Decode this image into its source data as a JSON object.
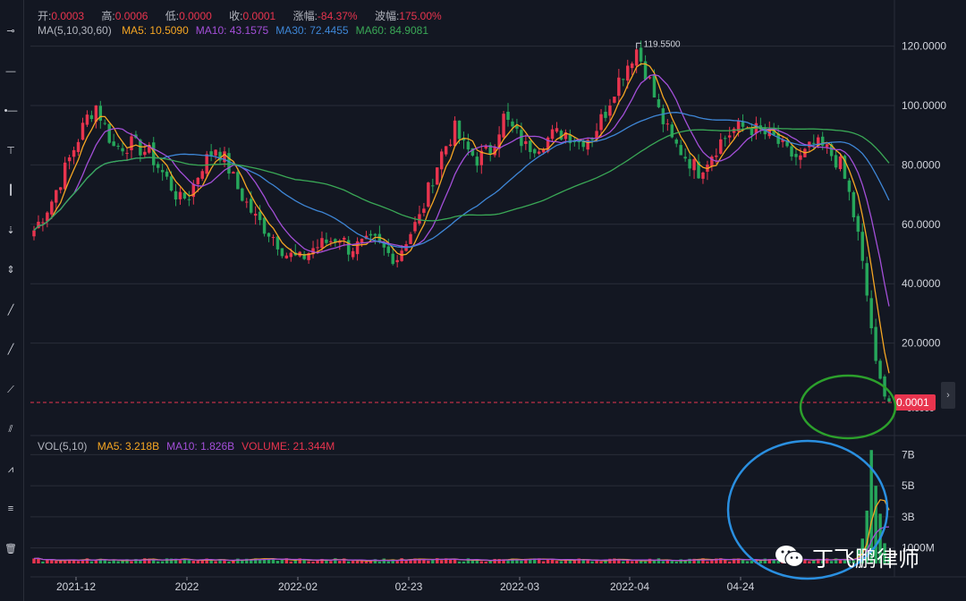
{
  "ohlc": {
    "open_label": "开:",
    "open": "0.0003",
    "high_label": "高:",
    "high": "0.0006",
    "low_label": "低:",
    "low": "0.0000",
    "close_label": "收:",
    "close": "0.0001",
    "change_label": "涨幅:",
    "change": "-84.37%",
    "range_label": "波幅:",
    "range": "175.00%"
  },
  "ma_legend": {
    "title": "MA(5,10,30,60)",
    "items": [
      {
        "label": "MA5:",
        "value": "10.5090",
        "color": "#f5a623"
      },
      {
        "label": "MA10:",
        "value": "43.1575",
        "color": "#a34fd8"
      },
      {
        "label": "MA30:",
        "value": "72.4455",
        "color": "#3e86d6"
      },
      {
        "label": "MA60:",
        "value": "84.9081",
        "color": "#3aa856"
      }
    ]
  },
  "vol_legend": {
    "title": "VOL(5,10)",
    "items": [
      {
        "label": "MA5:",
        "value": "3.218B",
        "color": "#f5a623"
      },
      {
        "label": "MA10:",
        "value": "1.826B",
        "color": "#a34fd8"
      },
      {
        "label": "VOLUME:",
        "value": "21.344M",
        "color": "#e8344e"
      }
    ]
  },
  "watermark": "丁飞鹏律师",
  "colors": {
    "up": "#e8344e",
    "down": "#26a65b",
    "background": "#131722",
    "grid": "#2a2e39"
  },
  "toolbar_icons": [
    "crosshair-icon",
    "horizontal-line-icon",
    "horizontal-ray-icon",
    "price-label-icon",
    "vertical-line-icon",
    "vertical-segment-icon",
    "vertical-range-icon",
    "trend-line-icon",
    "ray-icon",
    "extended-line-icon",
    "parallel-channel-icon",
    "pitchfork-icon",
    "fib-retracement-icon",
    "trash-icon"
  ],
  "chart_data": {
    "type": "candlestick",
    "price_axis": {
      "range": [
        0,
        125
      ],
      "ticks": [
        "120.0000",
        "100.0000",
        "80.0000",
        "60.0000",
        "40.0000",
        "20.0000"
      ],
      "tick_values": [
        120,
        100,
        80,
        60,
        40,
        20
      ]
    },
    "volume_axis": {
      "ticks": [
        "7B",
        "5B",
        "3B",
        "1000M"
      ],
      "tick_values": [
        7,
        5,
        3,
        1
      ]
    },
    "x_axis": {
      "ticks": [
        "2021-12",
        "2022",
        "2022-02",
        "02-23",
        "2022-03",
        "2022-04",
        "04-24"
      ]
    },
    "last_price_label": "0.0001",
    "annotations": {
      "high": "119.5500",
      "low": "0.0000"
    },
    "close_path": [
      [
        0,
        58
      ],
      [
        4,
        68
      ],
      [
        8,
        82
      ],
      [
        12,
        96
      ],
      [
        14,
        100
      ],
      [
        18,
        86
      ],
      [
        22,
        87
      ],
      [
        26,
        84
      ],
      [
        30,
        75
      ],
      [
        33,
        68
      ],
      [
        35,
        70
      ],
      [
        38,
        80
      ],
      [
        41,
        86
      ],
      [
        43,
        82
      ],
      [
        46,
        72
      ],
      [
        50,
        62
      ],
      [
        54,
        56
      ],
      [
        57,
        50
      ],
      [
        60,
        48
      ],
      [
        63,
        52
      ],
      [
        66,
        54
      ],
      [
        69,
        56
      ],
      [
        71,
        52
      ],
      [
        74,
        53
      ],
      [
        77,
        54
      ],
      [
        80,
        50
      ],
      [
        82,
        49
      ],
      [
        84,
        55
      ],
      [
        87,
        62
      ],
      [
        90,
        76
      ],
      [
        92,
        84
      ],
      [
        95,
        92
      ],
      [
        97,
        86
      ],
      [
        100,
        82
      ],
      [
        103,
        85
      ],
      [
        106,
        96
      ],
      [
        109,
        90
      ],
      [
        111,
        86
      ],
      [
        114,
        87
      ],
      [
        117,
        90
      ],
      [
        120,
        91
      ],
      [
        123,
        88
      ],
      [
        126,
        90
      ],
      [
        129,
        98
      ],
      [
        131,
        106
      ],
      [
        134,
        114
      ],
      [
        136,
        119
      ],
      [
        139,
        108
      ],
      [
        141,
        98
      ],
      [
        144,
        88
      ],
      [
        147,
        83
      ],
      [
        150,
        78
      ],
      [
        152,
        82
      ],
      [
        155,
        88
      ],
      [
        158,
        92
      ],
      [
        161,
        93
      ],
      [
        164,
        91
      ],
      [
        167,
        89
      ],
      [
        170,
        84
      ],
      [
        173,
        82
      ],
      [
        176,
        87
      ],
      [
        179,
        85
      ],
      [
        182,
        80
      ],
      [
        184,
        70
      ],
      [
        186,
        56
      ],
      [
        188,
        36
      ],
      [
        190,
        14
      ],
      [
        192,
        2
      ],
      [
        193,
        0.3
      ]
    ],
    "ma5_last": 10.509,
    "ma10_last": 43.1575,
    "ma30_last": 72.4455,
    "ma60_last": 84.9081,
    "volume_note": "Volume is low (~0.1B–0.4B) through most of the period, spiking to ~7B in the final sessions."
  }
}
